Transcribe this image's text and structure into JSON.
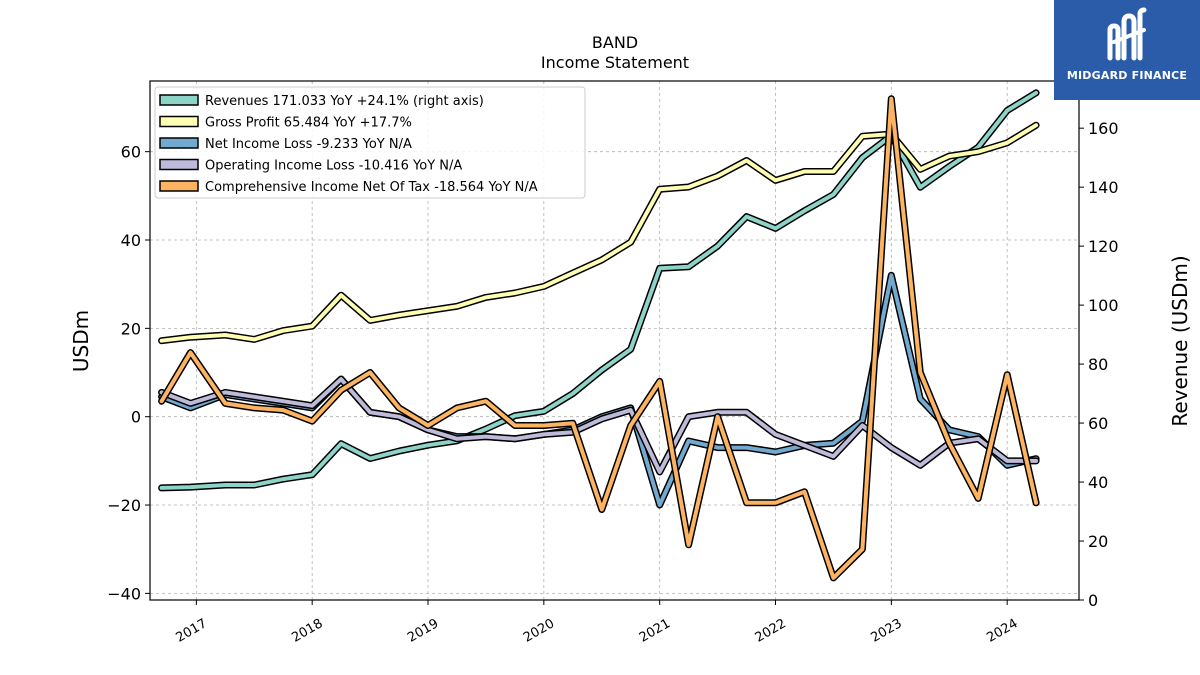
{
  "brand": {
    "name": "MIDGARD FINANCE",
    "colors": {
      "background": "#2a5caa",
      "text": "#ffffff"
    },
    "logo_icon": "midgard-logo-mark"
  },
  "chart_data": {
    "type": "line",
    "title": "BAND",
    "subtitle": "Income Statement",
    "ylabel": "USDm",
    "ylabel_right": "Revenue (USDm)",
    "ylim": [
      -41.5,
      76
    ],
    "ylim_right": [
      0,
      176
    ],
    "yticks": [
      -40,
      -20,
      0,
      20,
      40,
      60
    ],
    "yticks_right": [
      0,
      20,
      40,
      60,
      80,
      100,
      120,
      140,
      160
    ],
    "x_tick_labels": [
      "2017",
      "2018",
      "2019",
      "2020",
      "2021",
      "2022",
      "2023",
      "2024"
    ],
    "xlim": [
      2016.6,
      2024.62
    ],
    "grid": true,
    "legend_location": "upper left",
    "x": [
      2016.7,
      2016.95,
      2017.25,
      2017.5,
      2017.75,
      2018.0,
      2018.25,
      2018.5,
      2018.75,
      2019.0,
      2019.25,
      2019.5,
      2019.75,
      2020.0,
      2020.25,
      2020.5,
      2020.75,
      2021.0,
      2021.25,
      2021.5,
      2021.75,
      2022.0,
      2022.25,
      2022.5,
      2022.75,
      2023.0,
      2023.25,
      2023.5,
      2023.75,
      2024.0,
      2024.25
    ],
    "series": [
      {
        "name": "Revenues  171.033 YoY +24.1% (right axis)",
        "axis": "right",
        "color": "#8dd3c7",
        "values": [
          38,
          38.3,
          39,
          39,
          41,
          42.5,
          53,
          48,
          50.5,
          52.5,
          54,
          58,
          62.5,
          64,
          70,
          78,
          85,
          112.5,
          113,
          120,
          130,
          126,
          132,
          137.5,
          150,
          157.5,
          140,
          147,
          153.5,
          166,
          172
        ]
      },
      {
        "name": "Gross Profit  65.484 YoY +17.7%",
        "axis": "left",
        "color": "#ffffb3",
        "values": [
          17.2,
          18,
          18.5,
          17.5,
          19.5,
          20.5,
          27.5,
          21.8,
          23,
          24,
          25,
          27,
          28,
          29.5,
          32.5,
          35.5,
          39.5,
          51.5,
          52,
          54.5,
          58,
          53.5,
          55.5,
          55.5,
          63.5,
          64,
          56,
          59,
          60,
          62,
          66
        ]
      },
      {
        "name": "Net Income Loss  -9.233 YoY N/A",
        "axis": "left",
        "color": "#74a9cf",
        "values": [
          4.5,
          2,
          5,
          4,
          3,
          2,
          8.5,
          1,
          0,
          -3,
          -4.5,
          -4.5,
          -5,
          -4,
          -3,
          0,
          2,
          -20,
          -5.5,
          -7,
          -7,
          -8,
          -6.5,
          -6,
          -1,
          32,
          4,
          -3,
          -4.5,
          -11,
          -9.5
        ]
      },
      {
        "name": "Operating Income Loss  -10.416 YoY N/A",
        "axis": "left",
        "color": "#bebada",
        "values": [
          5.5,
          3,
          5.5,
          4.5,
          3.5,
          2.5,
          8.5,
          1,
          0,
          -3,
          -5,
          -4.5,
          -5,
          -4,
          -3.5,
          -0.5,
          1.5,
          -12.5,
          0,
          1,
          1,
          -4,
          -6.5,
          -9,
          -2,
          -7,
          -11,
          -6,
          -5,
          -10,
          -10
        ]
      },
      {
        "name": "Comprehensive Income Net Of Tax  -18.564 YoY N/A",
        "axis": "left",
        "color": "#fdb462",
        "values": [
          3.5,
          14.5,
          3,
          2,
          1.5,
          -1,
          6,
          10,
          2,
          -2,
          2,
          3.5,
          -2,
          -2,
          -1.5,
          -21,
          -2,
          8,
          -29,
          0,
          -19.5,
          -19.5,
          -17,
          -36.5,
          -30,
          72,
          10,
          -6,
          -18.5,
          9.5,
          -19.5
        ]
      }
    ]
  }
}
